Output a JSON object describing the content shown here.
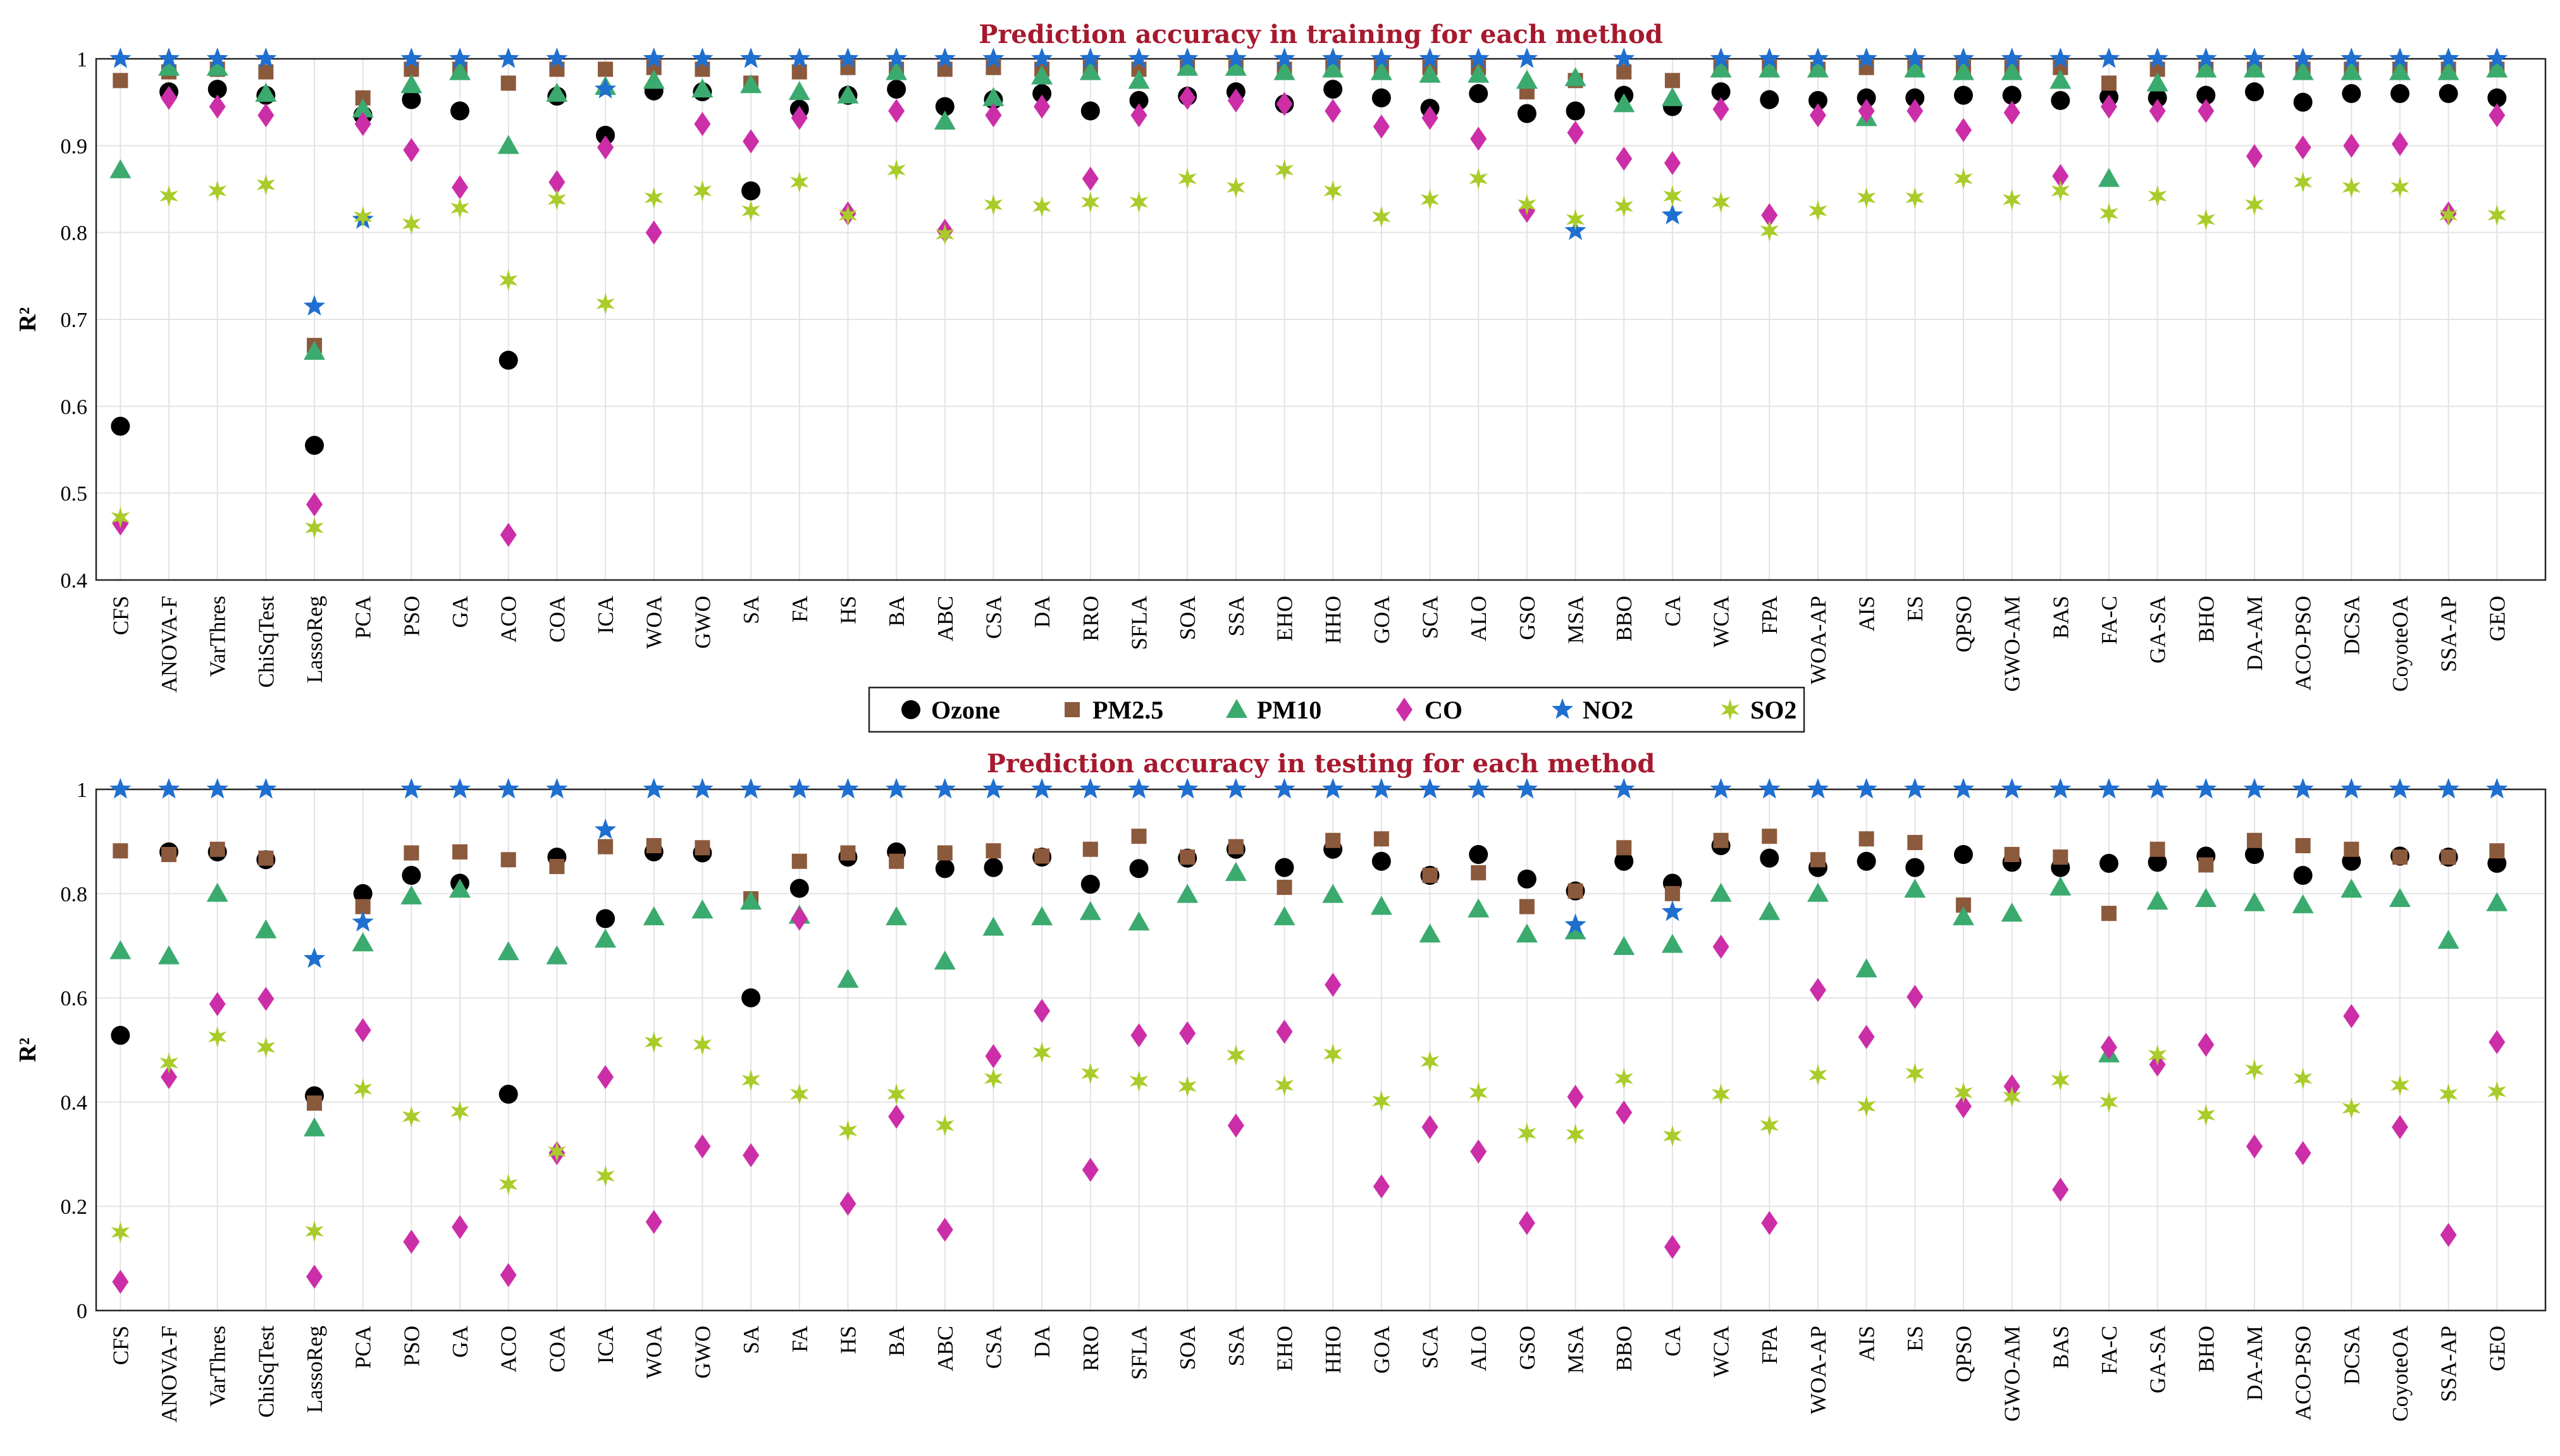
{
  "series_styles": [
    {
      "name": "Ozone",
      "marker": "circle",
      "color": "#000000"
    },
    {
      "name": "PM2.5",
      "marker": "square",
      "color": "#8B5A3C"
    },
    {
      "name": "PM10",
      "marker": "triangle",
      "color": "#3BAA6E"
    },
    {
      "name": "CO",
      "marker": "diamond",
      "color": "#CC2EA8"
    },
    {
      "name": "NO2",
      "marker": "star5",
      "color": "#1F6FD0"
    },
    {
      "name": "SO2",
      "marker": "star6",
      "color": "#A9CC2A"
    }
  ],
  "chart_data": [
    {
      "type": "scatter",
      "title": "Prediction accuracy in training for each method",
      "xlabel": "",
      "ylabel": "R²",
      "ylim": [
        0.4,
        1.0
      ],
      "yticks": [
        "0.4",
        "0.5",
        "0.6",
        "0.7",
        "0.8",
        "0.9",
        "1"
      ],
      "grid": true,
      "categories": [
        "CFS",
        "ANOVA-F",
        "VarThres",
        "ChiSqTest",
        "LassoReg",
        "PCA",
        "PSO",
        "GA",
        "ACO",
        "COA",
        "ICA",
        "WOA",
        "GWO",
        "SA",
        "FA",
        "HS",
        "BA",
        "ABC",
        "CSA",
        "DA",
        "RRO",
        "SFLA",
        "SOA",
        "SSA",
        "EHO",
        "HHO",
        "GOA",
        "SCA",
        "ALO",
        "GSO",
        "MSA",
        "BBO",
        "CA",
        "WCA",
        "FPA",
        "WOA-AP",
        "AIS",
        "ES",
        "QPSO",
        "GWO-AM",
        "BAS",
        "FA-C",
        "GA-SA",
        "BHO",
        "DA-AM",
        "ACO-PSO",
        "DCSA",
        "CoyoteOA",
        "SSA-AP",
        "GEO"
      ],
      "series": [
        {
          "name": "Ozone",
          "values": [
            0.577,
            0.962,
            0.965,
            0.958,
            0.555,
            0.935,
            0.953,
            0.94,
            0.653,
            0.957,
            0.912,
            0.963,
            0.962,
            0.848,
            0.942,
            0.958,
            0.965,
            0.945,
            0.953,
            0.96,
            0.94,
            0.952,
            0.957,
            0.962,
            0.948,
            0.965,
            0.955,
            0.943,
            0.96,
            0.937,
            0.94,
            0.958,
            0.945,
            0.962,
            0.953,
            0.952,
            0.955,
            0.955,
            0.958,
            0.958,
            0.952,
            0.956,
            0.955,
            0.958,
            0.962,
            0.95,
            0.96,
            0.96,
            0.96,
            0.955
          ]
        },
        {
          "name": "PM2.5",
          "values": [
            0.975,
            0.985,
            0.988,
            0.985,
            0.67,
            0.955,
            0.988,
            0.988,
            0.972,
            0.988,
            0.988,
            0.99,
            0.988,
            0.972,
            0.985,
            0.99,
            0.988,
            0.988,
            0.99,
            0.988,
            0.99,
            0.988,
            0.99,
            0.99,
            0.988,
            0.99,
            0.99,
            0.99,
            0.99,
            0.962,
            0.975,
            0.985,
            0.975,
            0.99,
            0.99,
            0.988,
            0.99,
            0.99,
            0.99,
            0.99,
            0.99,
            0.972,
            0.988,
            0.988,
            0.988,
            0.988,
            0.988,
            0.988,
            0.988,
            0.988
          ]
        },
        {
          "name": "PM10",
          "values": [
            0.872,
            0.99,
            0.99,
            0.96,
            0.663,
            0.942,
            0.97,
            0.985,
            0.9,
            0.96,
            0.968,
            0.975,
            0.965,
            0.97,
            0.962,
            0.958,
            0.985,
            0.928,
            0.955,
            0.98,
            0.985,
            0.975,
            0.99,
            0.99,
            0.985,
            0.988,
            0.985,
            0.982,
            0.982,
            0.975,
            0.978,
            0.948,
            0.955,
            0.988,
            0.988,
            0.988,
            0.932,
            0.988,
            0.985,
            0.985,
            0.975,
            0.862,
            0.972,
            0.988,
            0.988,
            0.985,
            0.985,
            0.985,
            0.985,
            0.988
          ]
        },
        {
          "name": "CO",
          "values": [
            0.465,
            0.955,
            0.945,
            0.935,
            0.487,
            0.925,
            0.895,
            0.852,
            0.452,
            0.858,
            0.898,
            0.8,
            0.925,
            0.905,
            0.932,
            0.822,
            0.94,
            0.802,
            0.935,
            0.945,
            0.862,
            0.935,
            0.955,
            0.952,
            0.948,
            0.94,
            0.922,
            0.932,
            0.908,
            0.825,
            0.915,
            0.885,
            0.88,
            0.942,
            0.82,
            0.935,
            0.94,
            0.94,
            0.918,
            0.938,
            0.865,
            0.945,
            0.94,
            0.94,
            0.888,
            0.898,
            0.9,
            0.902,
            0.822,
            0.935
          ]
        },
        {
          "name": "NO2",
          "values": [
            1.0,
            1.0,
            1.0,
            1.0,
            0.715,
            0.815,
            1.0,
            1.0,
            1.0,
            1.0,
            0.965,
            1.0,
            1.0,
            1.0,
            1.0,
            1.0,
            1.0,
            1.0,
            1.0,
            1.0,
            1.0,
            1.0,
            1.0,
            1.0,
            1.0,
            1.0,
            1.0,
            1.0,
            1.0,
            1.0,
            0.802,
            1.0,
            0.82,
            1.0,
            1.0,
            1.0,
            1.0,
            1.0,
            1.0,
            1.0,
            1.0,
            1.0,
            1.0,
            1.0,
            1.0,
            1.0,
            1.0,
            1.0,
            1.0,
            1.0
          ]
        },
        {
          "name": "SO2",
          "values": [
            0.472,
            0.842,
            0.848,
            0.855,
            0.46,
            0.818,
            0.81,
            0.828,
            0.745,
            0.838,
            0.718,
            0.84,
            0.848,
            0.825,
            0.858,
            0.82,
            0.872,
            0.798,
            0.832,
            0.83,
            0.835,
            0.835,
            0.862,
            0.852,
            0.872,
            0.848,
            0.818,
            0.838,
            0.862,
            0.832,
            0.815,
            0.83,
            0.842,
            0.835,
            0.802,
            0.825,
            0.84,
            0.84,
            0.862,
            0.838,
            0.848,
            0.822,
            0.842,
            0.815,
            0.832,
            0.858,
            0.852,
            0.852,
            0.82,
            0.82
          ]
        }
      ]
    },
    {
      "type": "scatter",
      "title": "Prediction accuracy in testing for each method",
      "xlabel": "",
      "ylabel": "R²",
      "ylim": [
        0,
        1.0
      ],
      "yticks": [
        "0",
        "0.2",
        "0.4",
        "0.6",
        "0.8",
        "1"
      ],
      "grid": true,
      "categories": [
        "CFS",
        "ANOVA-F",
        "VarThres",
        "ChiSqTest",
        "LassoReg",
        "PCA",
        "PSO",
        "GA",
        "ACO",
        "COA",
        "ICA",
        "WOA",
        "GWO",
        "SA",
        "FA",
        "HS",
        "BA",
        "ABC",
        "CSA",
        "DA",
        "RRO",
        "SFLA",
        "SOA",
        "SSA",
        "EHO",
        "HHO",
        "GOA",
        "SCA",
        "ALO",
        "GSO",
        "MSA",
        "BBO",
        "CA",
        "WCA",
        "FPA",
        "WOA-AP",
        "AIS",
        "ES",
        "QPSO",
        "GWO-AM",
        "BAS",
        "FA-C",
        "GA-SA",
        "BHO",
        "DA-AM",
        "ACO-PSO",
        "DCSA",
        "CoyoteOA",
        "SSA-AP",
        "GEO"
      ],
      "series": [
        {
          "name": "Ozone",
          "values": [
            0.528,
            0.88,
            0.88,
            0.865,
            0.412,
            0.8,
            0.835,
            0.82,
            0.415,
            0.87,
            0.752,
            0.88,
            0.878,
            0.6,
            0.81,
            0.87,
            0.88,
            0.848,
            0.85,
            0.87,
            0.818,
            0.848,
            0.868,
            0.885,
            0.85,
            0.885,
            0.862,
            0.835,
            0.875,
            0.828,
            0.805,
            0.862,
            0.82,
            0.892,
            0.868,
            0.85,
            0.862,
            0.85,
            0.875,
            0.86,
            0.85,
            0.858,
            0.86,
            0.872,
            0.875,
            0.835,
            0.862,
            0.872,
            0.87,
            0.858
          ]
        },
        {
          "name": "PM2.5",
          "values": [
            0.882,
            0.875,
            0.885,
            0.868,
            0.398,
            0.775,
            0.878,
            0.88,
            0.865,
            0.852,
            0.89,
            0.892,
            0.888,
            0.79,
            0.862,
            0.878,
            0.862,
            0.878,
            0.882,
            0.872,
            0.885,
            0.91,
            0.87,
            0.89,
            0.812,
            0.902,
            0.905,
            0.835,
            0.84,
            0.775,
            0.805,
            0.888,
            0.8,
            0.902,
            0.91,
            0.865,
            0.905,
            0.898,
            0.778,
            0.875,
            0.87,
            0.762,
            0.885,
            0.855,
            0.902,
            0.892,
            0.885,
            0.87,
            0.87,
            0.882
          ]
        },
        {
          "name": "PM10",
          "values": [
            0.69,
            0.68,
            0.8,
            0.73,
            0.35,
            0.705,
            0.795,
            0.808,
            0.688,
            0.68,
            0.712,
            0.755,
            0.768,
            0.785,
            0.758,
            0.635,
            0.755,
            0.67,
            0.735,
            0.755,
            0.765,
            0.745,
            0.798,
            0.84,
            0.755,
            0.798,
            0.775,
            0.722,
            0.77,
            0.722,
            0.728,
            0.698,
            0.702,
            0.8,
            0.765,
            0.8,
            0.655,
            0.808,
            0.755,
            0.762,
            0.812,
            0.492,
            0.785,
            0.79,
            0.782,
            0.778,
            0.808,
            0.79,
            0.71,
            0.782
          ]
        },
        {
          "name": "CO",
          "values": [
            0.055,
            0.448,
            0.588,
            0.598,
            0.065,
            0.538,
            0.132,
            0.16,
            0.068,
            0.302,
            0.448,
            0.17,
            0.315,
            0.298,
            0.752,
            0.205,
            0.372,
            0.155,
            0.488,
            0.575,
            0.27,
            0.528,
            0.532,
            0.355,
            0.535,
            0.625,
            0.238,
            0.352,
            0.305,
            0.168,
            0.41,
            0.38,
            0.122,
            0.698,
            0.168,
            0.615,
            0.525,
            0.602,
            0.392,
            0.43,
            0.232,
            0.505,
            0.472,
            0.51,
            0.315,
            0.302,
            0.565,
            0.352,
            0.145,
            0.515
          ]
        },
        {
          "name": "NO2",
          "values": [
            1.0,
            1.0,
            1.0,
            1.0,
            0.675,
            0.745,
            1.0,
            1.0,
            1.0,
            1.0,
            0.922,
            1.0,
            1.0,
            1.0,
            1.0,
            1.0,
            1.0,
            1.0,
            1.0,
            1.0,
            1.0,
            1.0,
            1.0,
            1.0,
            1.0,
            1.0,
            1.0,
            1.0,
            1.0,
            1.0,
            0.74,
            1.0,
            0.765,
            1.0,
            1.0,
            1.0,
            1.0,
            1.0,
            1.0,
            1.0,
            1.0,
            1.0,
            1.0,
            1.0,
            1.0,
            1.0,
            1.0,
            1.0,
            1.0,
            1.0
          ]
        },
        {
          "name": "SO2",
          "values": [
            0.15,
            0.475,
            0.525,
            0.505,
            0.152,
            0.425,
            0.372,
            0.382,
            0.242,
            0.305,
            0.258,
            0.515,
            0.51,
            0.442,
            0.415,
            0.345,
            0.415,
            0.355,
            0.445,
            0.495,
            0.455,
            0.44,
            0.43,
            0.49,
            0.432,
            0.492,
            0.402,
            0.478,
            0.418,
            0.34,
            0.338,
            0.445,
            0.335,
            0.415,
            0.355,
            0.452,
            0.392,
            0.455,
            0.418,
            0.41,
            0.442,
            0.4,
            0.49,
            0.375,
            0.462,
            0.445,
            0.388,
            0.432,
            0.415,
            0.42
          ]
        }
      ]
    }
  ]
}
